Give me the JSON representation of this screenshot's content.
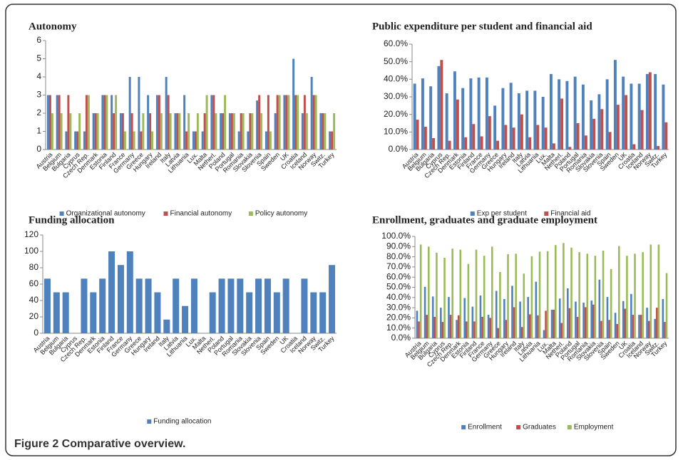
{
  "caption": "Figure 2 Comparative overview.",
  "chart_data": [
    {
      "type": "bar",
      "title": "Autonomy",
      "categories": [
        "Austria",
        "Belgium",
        "Bulgaria",
        "Cyprus",
        "Czech Rep.",
        "Denmark",
        "Estonia",
        "Finland",
        "France",
        "Germany",
        "Greece",
        "Hungary",
        "Ireland",
        "Italy",
        "Latvia",
        "Lithuania",
        "Lux.",
        "Malta",
        "Netherl.",
        "Poland",
        "Portugal",
        "Romania",
        "Slovakia",
        "Slovenia",
        "Spain",
        "Sweden",
        "UK",
        "Croatia",
        "Iceland",
        "Norway",
        "Switz.",
        "Turkey"
      ],
      "series": [
        {
          "name": "Organizational autonomy",
          "color": "#4f81bd",
          "values": [
            3,
            3,
            1,
            1,
            1,
            2,
            3,
            3,
            2,
            4,
            4,
            3,
            3,
            4,
            2,
            3,
            1,
            1,
            3,
            2,
            2,
            1,
            1,
            2.7,
            1,
            2,
            3,
            5,
            2,
            4,
            2,
            1
          ]
        },
        {
          "name": "Financial autonomy",
          "color": "#c0504d",
          "values": [
            3,
            3,
            3,
            1,
            3,
            2,
            3,
            2,
            2,
            2,
            1,
            2,
            3,
            3,
            2,
            1,
            1,
            2,
            3,
            2,
            2,
            2,
            2,
            3,
            3,
            3,
            3,
            3,
            3,
            3,
            2,
            1
          ]
        },
        {
          "name": "Policy autonomy",
          "color": "#9bbb59",
          "values": [
            2,
            2,
            2,
            2,
            3,
            2,
            3,
            3,
            1,
            1,
            2,
            1,
            2,
            2,
            2,
            2,
            2,
            3,
            2,
            3,
            2,
            2,
            2,
            2,
            1,
            3,
            3,
            3,
            2,
            3,
            2,
            2
          ]
        }
      ],
      "ylim": [
        0,
        6
      ],
      "yticks": [
        0,
        1,
        2,
        3,
        4,
        5,
        6
      ]
    },
    {
      "type": "bar",
      "title": "Public expenditure per student and financial aid",
      "categories": [
        "Austria",
        "Belgium",
        "Bulgaria",
        "Cyprus",
        "Czech Rep.",
        "Denmark",
        "Estonia",
        "Finland",
        "France",
        "Germany",
        "Greece",
        "Hungary",
        "Ireland",
        "Italy",
        "Latvia",
        "Lithuania",
        "Lux.",
        "Malta",
        "Netherl.",
        "Poland",
        "Portugal",
        "Romania",
        "Slovakia",
        "Slovenia",
        "Spain",
        "Sweden",
        "UK",
        "Croatia",
        "Iceland",
        "Norway",
        "Switz.",
        "Turkey"
      ],
      "series": [
        {
          "name": "Exp per student",
          "color": "#4f81bd",
          "values": [
            37.5,
            40.5,
            36,
            47.5,
            32,
            44.5,
            35,
            40.5,
            41,
            41,
            25,
            35,
            38,
            32,
            33.5,
            33.5,
            30,
            43,
            40,
            39,
            41.5,
            37,
            28,
            31.5,
            40,
            51,
            41.5,
            37.5,
            37.5,
            43,
            43,
            37
          ]
        },
        {
          "name": "Financial aid",
          "color": "#c0504d",
          "values": [
            17,
            13,
            6.5,
            51,
            5,
            28.5,
            7,
            14.5,
            7.5,
            19,
            5,
            14,
            12.5,
            20,
            7,
            14,
            12.5,
            3.5,
            29,
            1.5,
            15,
            8,
            17.5,
            23,
            10,
            25.5,
            31,
            3,
            22.5,
            44,
            2,
            15.5
          ]
        }
      ],
      "ylim": [
        0,
        60
      ],
      "yticks": [
        {
          "value": 0,
          "label": "0.0%"
        },
        {
          "value": 10,
          "label": "10.0%"
        },
        {
          "value": 20,
          "label": "20.0%"
        },
        {
          "value": 30,
          "label": "30.0%"
        },
        {
          "value": 40,
          "label": "40.0%"
        },
        {
          "value": 50,
          "label": "50.0%"
        },
        {
          "value": 60,
          "label": "60.0%"
        }
      ]
    },
    {
      "type": "bar",
      "title": "Funding allocation",
      "categories": [
        "Austria",
        "Belgium",
        "Bulgaria",
        "Cyprus",
        "Czech Rep.",
        "Denmark",
        "Estonia",
        "Finland",
        "France",
        "Germany",
        "Greece",
        "Hungary",
        "Ireland",
        "Italy",
        "Latvia",
        "Lithuania",
        "Lux.",
        "Malta",
        "Netherl.",
        "Poland",
        "Portugal",
        "Romania",
        "Slovakia",
        "Slovenia",
        "Spain",
        "Sweden",
        "UK",
        "Croatia",
        "Iceland",
        "Norway",
        "Switz.",
        "Turkey"
      ],
      "series": [
        {
          "name": "Funding allocation",
          "color": "#4f81bd",
          "values": [
            66.7,
            50,
            50,
            null,
            66.7,
            50,
            66.7,
            100,
            83.3,
            100,
            66.7,
            66.7,
            50,
            16.7,
            66.7,
            33.3,
            66.7,
            null,
            50,
            66.7,
            66.7,
            66.7,
            50,
            66.7,
            66.7,
            50,
            66.7,
            null,
            66.7,
            50,
            50,
            83.3
          ]
        }
      ],
      "ylim": [
        0,
        120
      ],
      "yticks": [
        0,
        20,
        40,
        60,
        80,
        100,
        120
      ]
    },
    {
      "type": "bar",
      "title": "Enrollment, graduates and graduate employment",
      "categories": [
        "Austria",
        "Belgium",
        "Bulgaria",
        "Cyprus",
        "Czech Rep.",
        "Denmark",
        "Estonia",
        "Finland",
        "France",
        "Germany",
        "Greece",
        "Hungary",
        "Ireland",
        "Italy",
        "Latvia",
        "Lithuania",
        "Lux.",
        "Malta",
        "Netherl.",
        "Poland",
        "Portugal",
        "Romania",
        "Slovakia",
        "Slovenia",
        "Spain",
        "Sweden",
        "UK",
        "Croatia",
        "Iceland",
        "Norway",
        "Switz.",
        "Turkey"
      ],
      "series": [
        {
          "name": "Enrollment",
          "color": "#4f81bd",
          "values": [
            27,
            50.5,
            41,
            30,
            40.5,
            18,
            39.5,
            31,
            42,
            23,
            46.5,
            38.5,
            51.5,
            36,
            40.5,
            55.5,
            8,
            28,
            39,
            49,
            36,
            35,
            37,
            57.5,
            40.5,
            25,
            36.5,
            43.5,
            23,
            30,
            19,
            38.5
          ]
        },
        {
          "name": "Graduates",
          "color": "#c0504d",
          "values": [
            16.5,
            23,
            21,
            16,
            23,
            22.5,
            16.5,
            16.5,
            21,
            20,
            10,
            18,
            30.5,
            11,
            23.5,
            22.5,
            27,
            28,
            15,
            29.5,
            21,
            30.5,
            33,
            17,
            18,
            14,
            29,
            23,
            23,
            17,
            30,
            16
          ]
        },
        {
          "name": "Employment",
          "color": "#9bbb59",
          "values": [
            92,
            90,
            84,
            79,
            88,
            87,
            73,
            87,
            81,
            90,
            65,
            82.5,
            83,
            63.5,
            80.5,
            85,
            85.5,
            91.5,
            93.5,
            89,
            84.5,
            83,
            81,
            86,
            68,
            90.5,
            81,
            83,
            84.5,
            92,
            92,
            64
          ]
        }
      ],
      "ylim": [
        0,
        100
      ],
      "yticks": [
        {
          "value": 0,
          "label": "0.0%"
        },
        {
          "value": 10,
          "label": "10.0%"
        },
        {
          "value": 20,
          "label": "20.0%"
        },
        {
          "value": 30,
          "label": "30.0%"
        },
        {
          "value": 40,
          "label": "40.0%"
        },
        {
          "value": 50,
          "label": "50.0%"
        },
        {
          "value": 60,
          "label": "60.0%"
        },
        {
          "value": 70,
          "label": "70.0%"
        },
        {
          "value": 80,
          "label": "80.0%"
        },
        {
          "value": 90,
          "label": "90.0%"
        },
        {
          "value": 100,
          "label": "100.0%"
        }
      ]
    }
  ]
}
